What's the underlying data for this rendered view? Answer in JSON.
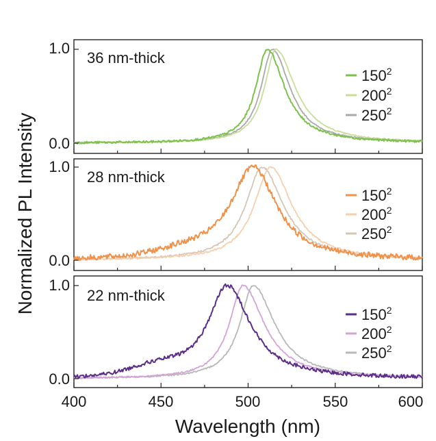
{
  "chart_data": {
    "type": "line",
    "xlabel": "Wavelength (nm)",
    "ylabel": "Normalized PL Intensity",
    "xlim": [
      400,
      600
    ],
    "x_ticks": [
      "400",
      "450",
      "500",
      "550",
      "600"
    ],
    "y_ticks": [
      "0.0",
      "1.0"
    ],
    "panels": [
      {
        "title": "36 nm-thick",
        "ylim": [
          -0.05,
          1.05
        ],
        "series": [
          {
            "name": "150",
            "sup": "2",
            "color": "#7cc24a",
            "peak": 511,
            "wl": 12,
            "wr": 18,
            "noise": 0.012
          },
          {
            "name": "200",
            "sup": "2",
            "color": "#c9dd9a",
            "peak": 516,
            "wl": 12,
            "wr": 20,
            "noise": 0.006
          },
          {
            "name": "250",
            "sup": "2",
            "color": "#a9a9a9",
            "peak": 514,
            "wl": 12,
            "wr": 18,
            "noise": 0.006
          }
        ]
      },
      {
        "title": "28 nm-thick",
        "ylim": [
          -0.05,
          1.05
        ],
        "series": [
          {
            "name": "150",
            "sup": "2",
            "color": "#f0914a",
            "peak": 503,
            "wl": 24,
            "wr": 24,
            "noise": 0.03,
            "shoulder": 0.06
          },
          {
            "name": "200",
            "sup": "2",
            "color": "#f5cfae",
            "peak": 513,
            "wl": 17,
            "wr": 22,
            "noise": 0.01
          },
          {
            "name": "250",
            "sup": "2",
            "color": "#d6c6b6",
            "peak": 508,
            "wl": 17,
            "wr": 22,
            "noise": 0.01
          }
        ]
      },
      {
        "title": "22 nm-thick",
        "ylim": [
          -0.05,
          1.05
        ],
        "series": [
          {
            "name": "150",
            "sup": "2",
            "color": "#5b2d8a",
            "peak": 488,
            "wl": 20,
            "wr": 24,
            "noise": 0.02,
            "shoulder": 0.1
          },
          {
            "name": "200",
            "sup": "2",
            "color": "#d3a3d8",
            "peak": 497,
            "wl": 14,
            "wr": 22,
            "noise": 0.008
          },
          {
            "name": "250",
            "sup": "2",
            "color": "#b8b8b8",
            "peak": 503,
            "wl": 14,
            "wr": 22,
            "noise": 0.008
          }
        ]
      }
    ]
  }
}
